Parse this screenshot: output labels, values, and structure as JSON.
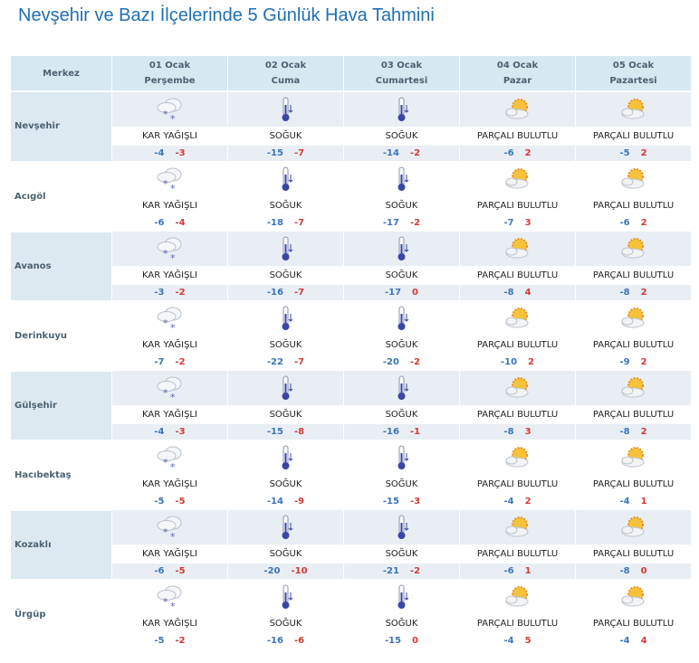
{
  "title": "Nevşehir ve Bazı İlçelerinde 5 Günlük Hava Tahmini",
  "header": {
    "merkez": "Merkez",
    "days": [
      {
        "date": "01 Ocak",
        "day": "Perşembe"
      },
      {
        "date": "02 Ocak",
        "day": "Cuma"
      },
      {
        "date": "03 Ocak",
        "day": "Cumartesi"
      },
      {
        "date": "04 Ocak",
        "day": "Pazar"
      },
      {
        "date": "05 Ocak",
        "day": "Pazartesi"
      }
    ]
  },
  "colors": {
    "low": "#3d74b8",
    "high": "#d23a3a",
    "title": "#1f6fb2"
  },
  "rows": [
    {
      "name": "Nevşehir",
      "f": [
        {
          "icon": "snow-cloud-icon",
          "text": "KAR YAĞIŞLI",
          "lo": "-4",
          "hi": "-3"
        },
        {
          "icon": "thermometer-cold-icon",
          "text": "SOĞUK",
          "lo": "-15",
          "hi": "-7"
        },
        {
          "icon": "thermometer-cold-icon",
          "text": "SOĞUK",
          "lo": "-14",
          "hi": "-2"
        },
        {
          "icon": "partly-cloudy-icon",
          "text": "PARÇALI BULUTLU",
          "lo": "-6",
          "hi": "2"
        },
        {
          "icon": "partly-cloudy-icon",
          "text": "PARÇALI BULUTLU",
          "lo": "-5",
          "hi": "2"
        }
      ]
    },
    {
      "name": "Acıgöl",
      "f": [
        {
          "icon": "snow-cloud-icon",
          "text": "KAR YAĞIŞLI",
          "lo": "-6",
          "hi": "-4"
        },
        {
          "icon": "thermometer-cold-icon",
          "text": "SOĞUK",
          "lo": "-18",
          "hi": "-7"
        },
        {
          "icon": "thermometer-cold-icon",
          "text": "SOĞUK",
          "lo": "-17",
          "hi": "-2"
        },
        {
          "icon": "partly-cloudy-icon",
          "text": "PARÇALI BULUTLU",
          "lo": "-7",
          "hi": "3"
        },
        {
          "icon": "partly-cloudy-icon",
          "text": "PARÇALI BULUTLU",
          "lo": "-6",
          "hi": "2"
        }
      ]
    },
    {
      "name": "Avanos",
      "f": [
        {
          "icon": "snow-cloud-icon",
          "text": "KAR YAĞIŞLI",
          "lo": "-3",
          "hi": "-2"
        },
        {
          "icon": "thermometer-cold-icon",
          "text": "SOĞUK",
          "lo": "-16",
          "hi": "-7"
        },
        {
          "icon": "thermometer-cold-icon",
          "text": "SOĞUK",
          "lo": "-17",
          "hi": "0"
        },
        {
          "icon": "partly-cloudy-icon",
          "text": "PARÇALI BULUTLU",
          "lo": "-8",
          "hi": "4"
        },
        {
          "icon": "partly-cloudy-icon",
          "text": "PARÇALI BULUTLU",
          "lo": "-8",
          "hi": "2"
        }
      ]
    },
    {
      "name": "Derinkuyu",
      "f": [
        {
          "icon": "snow-cloud-icon",
          "text": "KAR YAĞIŞLI",
          "lo": "-7",
          "hi": "-2"
        },
        {
          "icon": "thermometer-cold-icon",
          "text": "SOĞUK",
          "lo": "-22",
          "hi": "-7"
        },
        {
          "icon": "thermometer-cold-icon",
          "text": "SOĞUK",
          "lo": "-20",
          "hi": "-2"
        },
        {
          "icon": "partly-cloudy-icon",
          "text": "PARÇALI BULUTLU",
          "lo": "-10",
          "hi": "2"
        },
        {
          "icon": "partly-cloudy-icon",
          "text": "PARÇALI BULUTLU",
          "lo": "-9",
          "hi": "2"
        }
      ]
    },
    {
      "name": "Gülşehir",
      "f": [
        {
          "icon": "snow-cloud-icon",
          "text": "KAR YAĞIŞLI",
          "lo": "-4",
          "hi": "-3"
        },
        {
          "icon": "thermometer-cold-icon",
          "text": "SOĞUK",
          "lo": "-15",
          "hi": "-8"
        },
        {
          "icon": "thermometer-cold-icon",
          "text": "SOĞUK",
          "lo": "-16",
          "hi": "-1"
        },
        {
          "icon": "partly-cloudy-icon",
          "text": "PARÇALI BULUTLU",
          "lo": "-8",
          "hi": "3"
        },
        {
          "icon": "partly-cloudy-icon",
          "text": "PARÇALI BULUTLU",
          "lo": "-8",
          "hi": "2"
        }
      ]
    },
    {
      "name": "Hacıbektaş",
      "f": [
        {
          "icon": "snow-cloud-icon",
          "text": "KAR YAĞIŞLI",
          "lo": "-5",
          "hi": "-5"
        },
        {
          "icon": "thermometer-cold-icon",
          "text": "SOĞUK",
          "lo": "-14",
          "hi": "-9"
        },
        {
          "icon": "thermometer-cold-icon",
          "text": "SOĞUK",
          "lo": "-15",
          "hi": "-3"
        },
        {
          "icon": "partly-cloudy-icon",
          "text": "PARÇALI BULUTLU",
          "lo": "-4",
          "hi": "2"
        },
        {
          "icon": "partly-cloudy-icon",
          "text": "PARÇALI BULUTLU",
          "lo": "-4",
          "hi": "1"
        }
      ]
    },
    {
      "name": "Kozaklı",
      "f": [
        {
          "icon": "snow-cloud-icon",
          "text": "KAR YAĞIŞLI",
          "lo": "-6",
          "hi": "-5"
        },
        {
          "icon": "thermometer-cold-icon",
          "text": "SOĞUK",
          "lo": "-20",
          "hi": "-10"
        },
        {
          "icon": "thermometer-cold-icon",
          "text": "SOĞUK",
          "lo": "-21",
          "hi": "-2"
        },
        {
          "icon": "partly-cloudy-icon",
          "text": "PARÇALI BULUTLU",
          "lo": "-6",
          "hi": "1"
        },
        {
          "icon": "partly-cloudy-icon",
          "text": "PARÇALI BULUTLU",
          "lo": "-8",
          "hi": "0"
        }
      ]
    },
    {
      "name": "Ürgüp",
      "f": [
        {
          "icon": "snow-cloud-icon",
          "text": "KAR YAĞIŞLI",
          "lo": "-5",
          "hi": "-2"
        },
        {
          "icon": "thermometer-cold-icon",
          "text": "SOĞUK",
          "lo": "-16",
          "hi": "-6"
        },
        {
          "icon": "thermometer-cold-icon",
          "text": "SOĞUK",
          "lo": "-15",
          "hi": "0"
        },
        {
          "icon": "partly-cloudy-icon",
          "text": "PARÇALI BULUTLU",
          "lo": "-4",
          "hi": "5"
        },
        {
          "icon": "partly-cloudy-icon",
          "text": "PARÇALI BULUTLU",
          "lo": "-4",
          "hi": "4"
        }
      ]
    }
  ]
}
